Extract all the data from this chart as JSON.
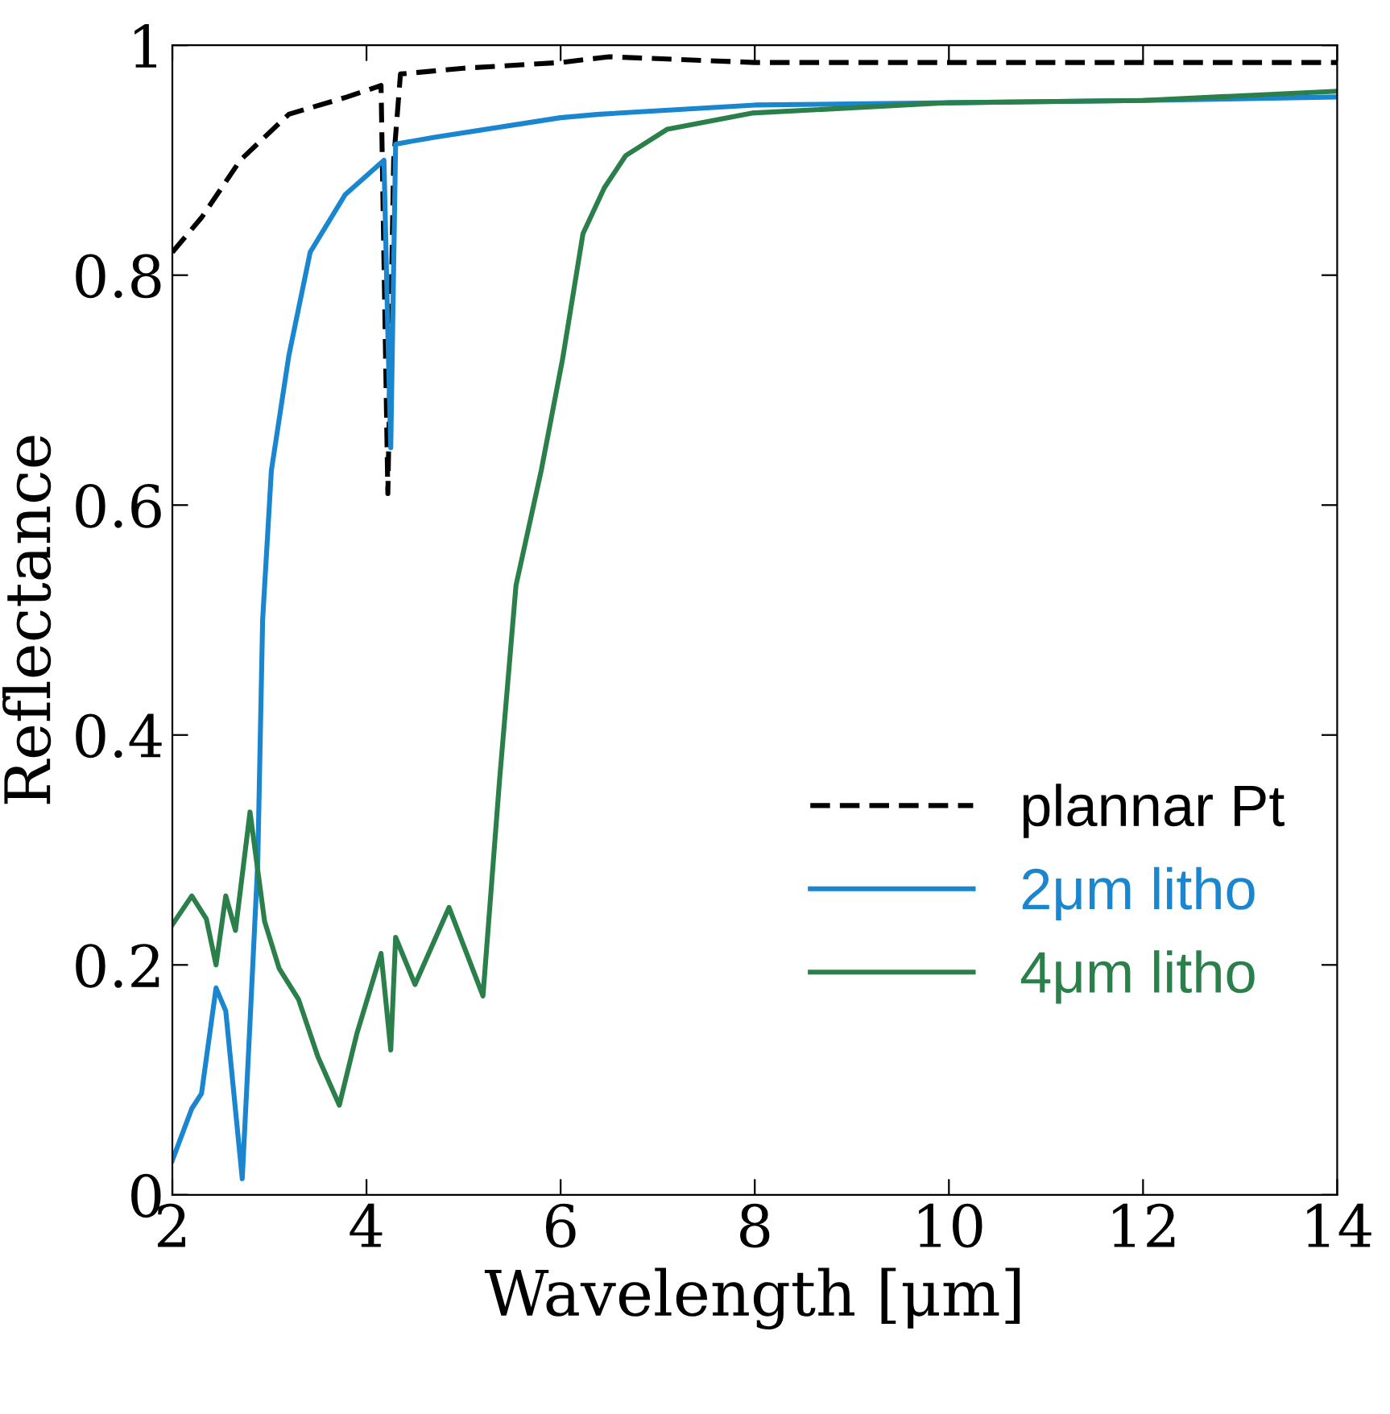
{
  "chart_data": {
    "type": "line",
    "xlabel": "Wavelength [μm]",
    "ylabel": "Reflectance",
    "xlim": [
      2,
      14
    ],
    "ylim": [
      0,
      1
    ],
    "xticks": [
      2,
      4,
      6,
      8,
      10,
      12,
      14
    ],
    "yticks": [
      0,
      0.2,
      0.4,
      0.6,
      0.8,
      1
    ],
    "grid": false,
    "legend": "bottom right",
    "marker": "none",
    "series": [
      {
        "name": "plannar Pt",
        "color": "#000000",
        "line_style": "dashed",
        "x": [
          2,
          2.3,
          2.7,
          3.2,
          3.8,
          4.15,
          4.22,
          4.28,
          4.35,
          5,
          6,
          6.5,
          8,
          10,
          12,
          14
        ],
        "values": [
          0.82,
          0.85,
          0.9,
          0.94,
          0.955,
          0.965,
          0.61,
          0.9,
          0.975,
          0.98,
          0.985,
          0.99,
          0.985,
          0.985,
          0.985,
          0.985
        ]
      },
      {
        "name": "2μm litho",
        "color": "#1a86cf",
        "line_style": "solid",
        "x": [
          2,
          2.2,
          2.3,
          2.45,
          2.55,
          2.72,
          2.8,
          2.88,
          2.93,
          3.02,
          3.2,
          3.42,
          3.78,
          4.18,
          4.22,
          4.25,
          4.3,
          4.7,
          6,
          6.4,
          8,
          10,
          12,
          14
        ],
        "values": [
          0.03,
          0.075,
          0.088,
          0.18,
          0.16,
          0.014,
          0.15,
          0.29,
          0.5,
          0.63,
          0.73,
          0.82,
          0.87,
          0.9,
          0.75,
          0.65,
          0.914,
          0.92,
          0.937,
          0.94,
          0.948,
          0.95,
          0.952,
          0.955
        ]
      },
      {
        "name": "4μm litho",
        "color": "#2b7f4a",
        "line_style": "solid",
        "x": [
          2,
          2.2,
          2.35,
          2.45,
          2.55,
          2.65,
          2.8,
          2.95,
          3.1,
          3.3,
          3.5,
          3.72,
          3.9,
          4.15,
          4.25,
          4.3,
          4.5,
          4.85,
          5.2,
          5.37,
          5.54,
          5.8,
          6.02,
          6.23,
          6.45,
          6.67,
          7.1,
          7.97,
          10,
          12,
          14
        ],
        "values": [
          0.235,
          0.26,
          0.24,
          0.2,
          0.26,
          0.23,
          0.333,
          0.238,
          0.197,
          0.17,
          0.12,
          0.078,
          0.14,
          0.21,
          0.126,
          0.224,
          0.183,
          0.25,
          0.173,
          0.36,
          0.53,
          0.63,
          0.727,
          0.836,
          0.876,
          0.904,
          0.927,
          0.941,
          0.95,
          0.952,
          0.96
        ]
      }
    ]
  }
}
